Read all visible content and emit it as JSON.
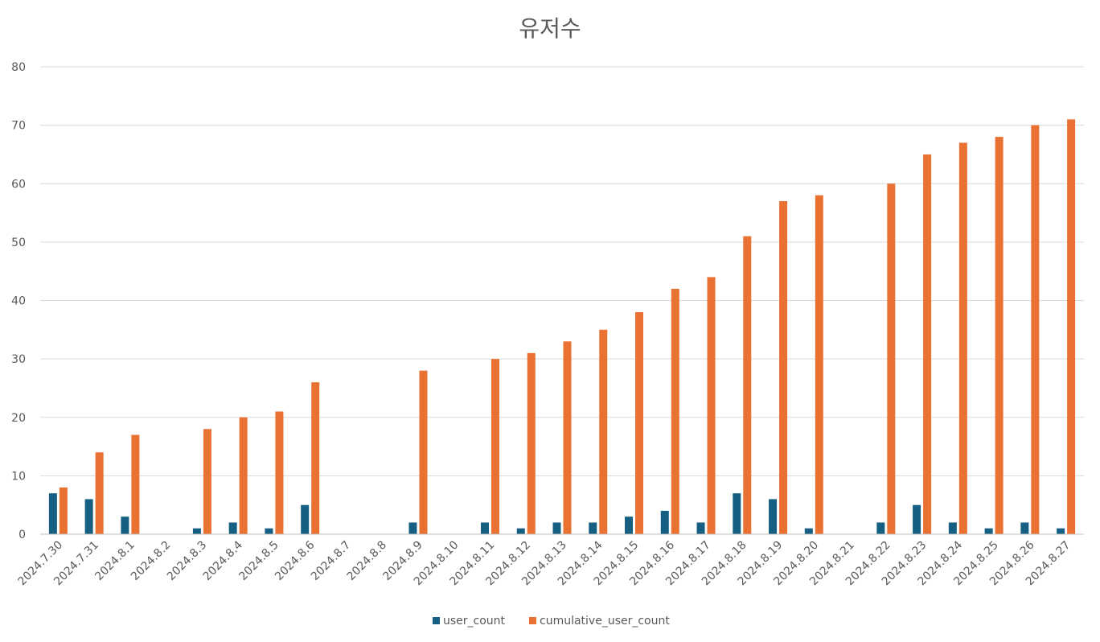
{
  "chart_data": {
    "type": "bar",
    "title": "유저수",
    "xlabel": "",
    "ylabel": "",
    "ylim": [
      0,
      80
    ],
    "yticks": [
      0,
      10,
      20,
      30,
      40,
      50,
      60,
      70,
      80
    ],
    "grid": true,
    "legend_position": "bottom",
    "categories": [
      "2024.7.30",
      "2024.7.31",
      "2024.8.1",
      "2024.8.2",
      "2024.8.3",
      "2024.8.4",
      "2024.8.5",
      "2024.8.6",
      "2024.8.7",
      "2024.8.8",
      "2024.8.9",
      "2024.8.10",
      "2024.8.11",
      "2024.8.12",
      "2024.8.13",
      "2024.8.14",
      "2024.8.15",
      "2024.8.16",
      "2024.8.17",
      "2024.8.18",
      "2024.8.19",
      "2024.8.20",
      "2024.8.21",
      "2024.8.22",
      "2024.8.23",
      "2024.8.24",
      "2024.8.25",
      "2024.8.26",
      "2024.8.27"
    ],
    "series": [
      {
        "name": "user_count",
        "color": "#156082",
        "values": [
          7,
          6,
          3,
          null,
          1,
          2,
          1,
          5,
          null,
          null,
          2,
          null,
          2,
          1,
          2,
          2,
          3,
          4,
          2,
          7,
          6,
          1,
          null,
          2,
          5,
          2,
          1,
          2,
          1
        ]
      },
      {
        "name": "cumulative_user_count",
        "color": "#e97132",
        "values": [
          8,
          14,
          17,
          null,
          18,
          20,
          21,
          26,
          null,
          null,
          28,
          null,
          30,
          31,
          33,
          35,
          38,
          42,
          44,
          51,
          57,
          58,
          null,
          60,
          65,
          67,
          68,
          70,
          71
        ]
      }
    ]
  }
}
